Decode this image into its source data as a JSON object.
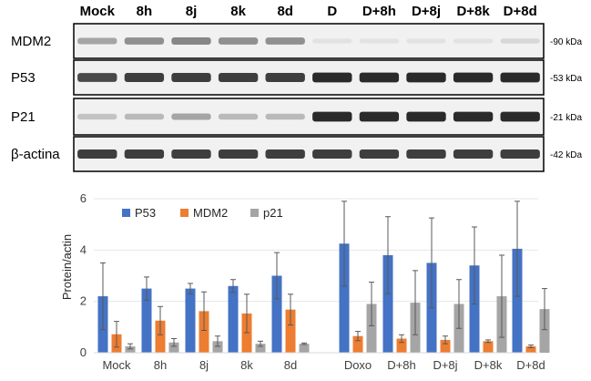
{
  "blot": {
    "lanes": [
      "Mock",
      "8h",
      "8j",
      "8k",
      "8d",
      "D",
      "D+8h",
      "D+8j",
      "D+8k",
      "D+8d"
    ],
    "bands": [
      {
        "label": "MDM2",
        "kda": "-90 kDa",
        "intensity": [
          0.35,
          0.45,
          0.5,
          0.45,
          0.45,
          0.05,
          0.05,
          0.05,
          0.05,
          0.1
        ]
      },
      {
        "label": "P53",
        "kda": "-53 kDa",
        "intensity": [
          0.8,
          0.85,
          0.85,
          0.85,
          0.85,
          0.95,
          0.95,
          0.95,
          0.95,
          0.95
        ]
      },
      {
        "label": "P21",
        "kda": "-21 kDa",
        "intensity": [
          0.2,
          0.25,
          0.35,
          0.25,
          0.25,
          0.95,
          0.95,
          0.95,
          0.95,
          0.95
        ]
      },
      {
        "label": "β-actina",
        "kda": "-42 kDa",
        "intensity": [
          0.85,
          0.85,
          0.85,
          0.85,
          0.85,
          0.85,
          0.85,
          0.85,
          0.85,
          0.85
        ]
      }
    ]
  },
  "chart_data": {
    "type": "bar",
    "ylabel": "Protein/actin",
    "xlabel": "",
    "ylim": [
      0,
      6
    ],
    "yticks": [
      0,
      2,
      4,
      6
    ],
    "grid": true,
    "legend_position": "top-left",
    "categories": [
      "Mock",
      "8h",
      "8j",
      "8k",
      "8d",
      "Doxo",
      "D+8h",
      "D+8j",
      "D+8k",
      "D+8d"
    ],
    "series": [
      {
        "name": "P53",
        "color": "#4472C4",
        "values": [
          2.2,
          2.5,
          2.5,
          2.6,
          3.0,
          4.25,
          3.8,
          3.5,
          3.4,
          4.05
        ],
        "errors": [
          1.3,
          0.45,
          0.2,
          0.25,
          0.9,
          1.65,
          1.5,
          1.75,
          1.5,
          1.85
        ]
      },
      {
        "name": "MDM2",
        "color": "#ED7D31",
        "values": [
          0.72,
          1.25,
          1.62,
          1.53,
          1.68,
          0.65,
          0.55,
          0.5,
          0.45,
          0.25
        ],
        "errors": [
          0.5,
          0.55,
          0.75,
          0.75,
          0.6,
          0.18,
          0.15,
          0.15,
          0.05,
          0.05
        ]
      },
      {
        "name": "p21",
        "color": "#A5A5A5",
        "values": [
          0.25,
          0.4,
          0.45,
          0.35,
          0.35,
          1.9,
          1.95,
          1.9,
          2.2,
          1.7
        ],
        "errors": [
          0.1,
          0.15,
          0.2,
          0.1,
          0.03,
          0.85,
          1.25,
          0.95,
          1.6,
          0.8
        ]
      }
    ]
  },
  "colors": {
    "axis": "#D9D9D9",
    "grid": "#E6E6E6",
    "error": "#595959"
  }
}
